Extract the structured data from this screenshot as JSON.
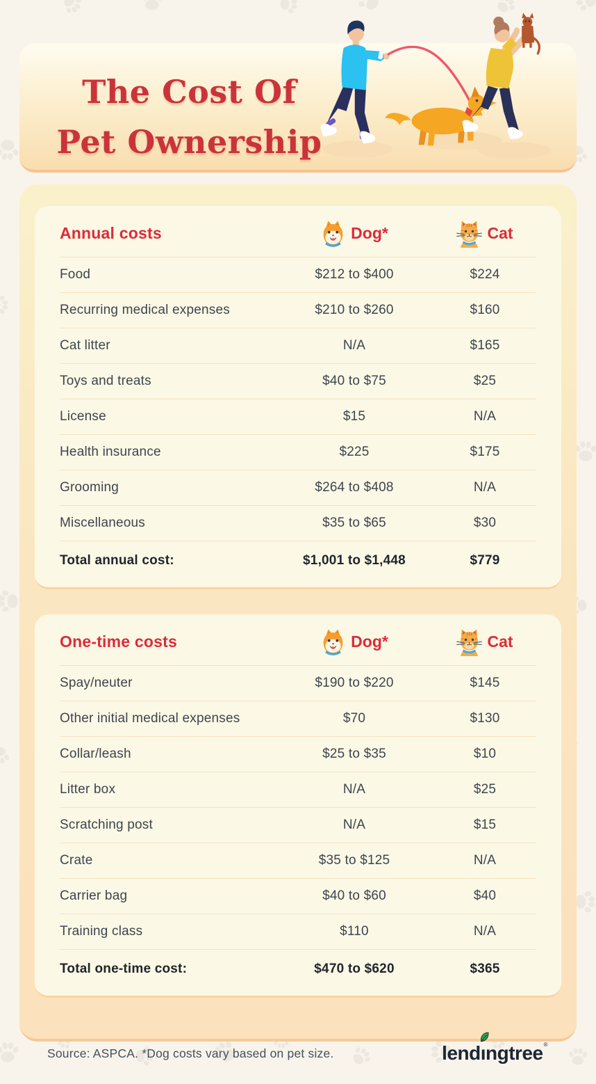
{
  "title": {
    "line1": "The Cost Of",
    "line2": "Pet Ownership"
  },
  "header_illustration": "man-walking-dog-on-leash-and-woman-holding-cat-up",
  "colors": {
    "title_red": "#CB333B",
    "table_header_red": "#DD2B38",
    "body_text": "#3D454D",
    "total_text": "#20262C",
    "card_cream": "#FCF8E6",
    "wrapper_peach": "#FBE2BC",
    "page_background": "#F8F4EC",
    "logo_navy": "#1C2635",
    "logo_leaf_green": "#2FB34B",
    "leash_pink": "#F0566B",
    "dog_orange": "#F5A623"
  },
  "tables": [
    {
      "header": {
        "label": "Annual costs",
        "dog": "Dog*",
        "cat": "Cat"
      },
      "rows": [
        {
          "label": "Food",
          "dog": "$212 to $400",
          "cat": "$224"
        },
        {
          "label": "Recurring medical expenses",
          "dog": "$210 to $260",
          "cat": "$160"
        },
        {
          "label": "Cat litter",
          "dog": "N/A",
          "cat": "$165"
        },
        {
          "label": "Toys and treats",
          "dog": "$40 to $75",
          "cat": "$25"
        },
        {
          "label": "License",
          "dog": "$15",
          "cat": "N/A"
        },
        {
          "label": "Health insurance",
          "dog": "$225",
          "cat": "$175"
        },
        {
          "label": "Grooming",
          "dog": "$264 to $408",
          "cat": "N/A"
        },
        {
          "label": "Miscellaneous",
          "dog": "$35 to $65",
          "cat": "$30"
        }
      ],
      "total": {
        "label": "Total annual cost:",
        "dog": "$1,001 to $1,448",
        "cat": "$779"
      }
    },
    {
      "header": {
        "label": "One-time costs",
        "dog": "Dog*",
        "cat": "Cat"
      },
      "rows": [
        {
          "label": "Spay/neuter",
          "dog": "$190 to $220",
          "cat": "$145"
        },
        {
          "label": "Other initial medical expenses",
          "dog": "$70",
          "cat": "$130"
        },
        {
          "label": "Collar/leash",
          "dog": "$25 to $35",
          "cat": "$10"
        },
        {
          "label": "Litter box",
          "dog": "N/A",
          "cat": "$25"
        },
        {
          "label": "Scratching post",
          "dog": "N/A",
          "cat": "$15"
        },
        {
          "label": "Crate",
          "dog": "$35 to $125",
          "cat": "N/A"
        },
        {
          "label": "Carrier bag",
          "dog": "$40 to $60",
          "cat": "$40"
        },
        {
          "label": "Training class",
          "dog": "$110",
          "cat": "N/A"
        }
      ],
      "total": {
        "label": "Total one-time cost:",
        "dog": "$470 to $620",
        "cat": "$365"
      }
    }
  ],
  "chart_data": [
    {
      "type": "table",
      "title": "Annual costs",
      "columns": [
        "Annual costs",
        "Dog*",
        "Cat"
      ],
      "rows": [
        [
          "Food",
          "$212 to $400",
          "$224"
        ],
        [
          "Recurring medical expenses",
          "$210 to $260",
          "$160"
        ],
        [
          "Cat litter",
          "N/A",
          "$165"
        ],
        [
          "Toys and treats",
          "$40 to $75",
          "$25"
        ],
        [
          "License",
          "$15",
          "N/A"
        ],
        [
          "Health insurance",
          "$225",
          "$175"
        ],
        [
          "Grooming",
          "$264 to $408",
          "N/A"
        ],
        [
          "Miscellaneous",
          "$35 to $65",
          "$30"
        ],
        [
          "Total annual cost:",
          "$1,001 to $1,448",
          "$779"
        ]
      ]
    },
    {
      "type": "table",
      "title": "One-time costs",
      "columns": [
        "One-time costs",
        "Dog*",
        "Cat"
      ],
      "rows": [
        [
          "Spay/neuter",
          "$190 to $220",
          "$145"
        ],
        [
          "Other initial medical expenses",
          "$70",
          "$130"
        ],
        [
          "Collar/leash",
          "$25 to $35",
          "$10"
        ],
        [
          "Litter box",
          "N/A",
          "$25"
        ],
        [
          "Scratching post",
          "N/A",
          "$15"
        ],
        [
          "Crate",
          "$35 to $125",
          "N/A"
        ],
        [
          "Carrier bag",
          "$40 to $60",
          "$40"
        ],
        [
          "Training class",
          "$110",
          "N/A"
        ],
        [
          "Total one-time cost:",
          "$470 to $620",
          "$365"
        ]
      ]
    }
  ],
  "footer": {
    "source": "Source: ASPCA. *Dog costs vary based on pet size.",
    "logo": {
      "part1": "lend",
      "i": "ı",
      "part2": "ngtree",
      "reg": "®"
    },
    "logo_name": "lendingtree"
  },
  "icon_names": [
    "dog-face-icon",
    "cat-face-icon",
    "leaf-icon",
    "paw-print-pattern"
  ]
}
